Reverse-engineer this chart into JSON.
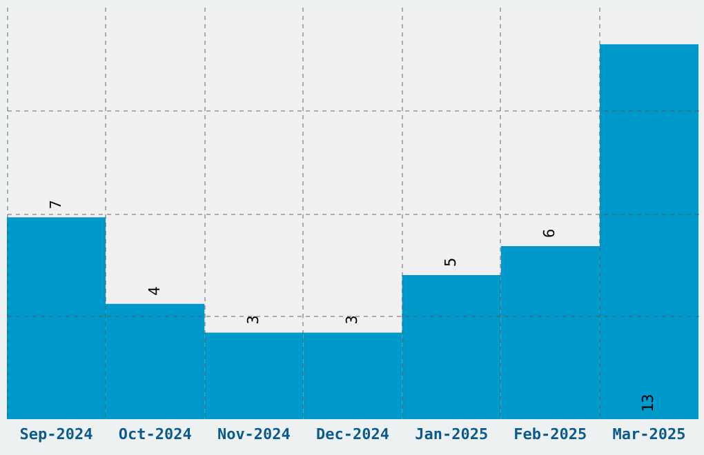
{
  "chart_data": {
    "type": "bar",
    "categories": [
      "Sep-2024",
      "Oct-2024",
      "Nov-2024",
      "Dec-2024",
      "Jan-2025",
      "Feb-2025",
      "Mar-2025"
    ],
    "values": [
      7,
      4,
      3,
      3,
      5,
      6,
      13
    ],
    "color": "#0099cc",
    "ylim": [
      0,
      14.3
    ],
    "yticks": [
      {
        "value": 3.57,
        "label": null
      },
      {
        "value": 7.15,
        "label": null
      },
      {
        "value": 10.72,
        "label": null
      }
    ],
    "grid": true,
    "tick_labels": "x",
    "data_labels": true
  }
}
